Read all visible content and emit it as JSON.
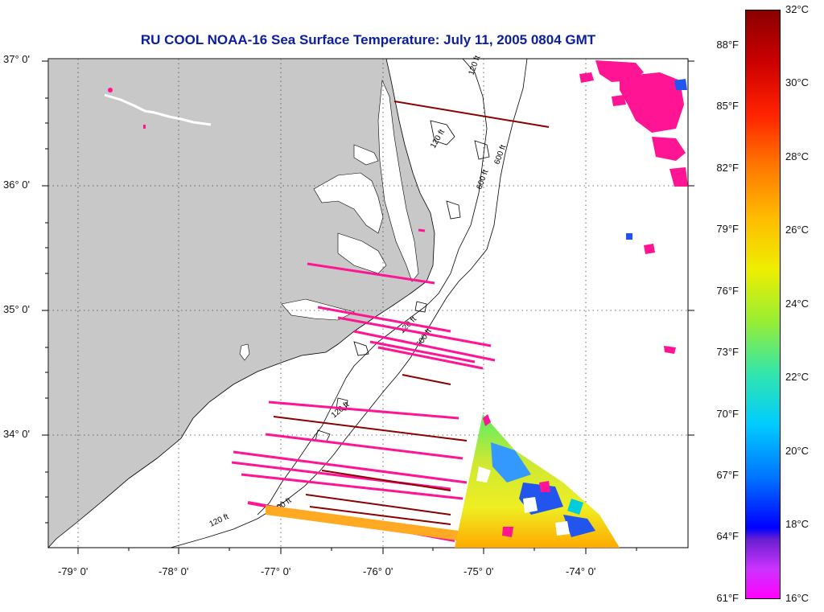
{
  "title": "RU COOL  NOAA-16  Sea Surface Temperature:  July 11, 2005 0804 GMT",
  "lat_labels": [
    "37° 0'",
    "36° 0'",
    "35° 0'",
    "34° 0'"
  ],
  "lon_labels": [
    "-79° 0'",
    "-78° 0'",
    "-77° 0'",
    "-76° 0'",
    "-75° 0'",
    "-74° 0'"
  ],
  "contour_labels": [
    "120 ft",
    "600 ft",
    "120 ft",
    "600 ft",
    "120 ft",
    "600 ft",
    "120 ft",
    "600 ft",
    "120 ft"
  ],
  "colorbar": {
    "fahrenheit_ticks": [
      "88°F",
      "85°F",
      "82°F",
      "79°F",
      "76°F",
      "73°F",
      "70°F",
      "67°F",
      "64°F",
      "61°F"
    ],
    "celsius_ticks": [
      "32°C",
      "30°C",
      "28°C",
      "26°C",
      "24°C",
      "22°C",
      "20°C",
      "18°C",
      "16°C"
    ],
    "gradient_stops": [
      "#ff00ff",
      "#cc33ff",
      "#6a1fd0",
      "#0000ff",
      "#0077ff",
      "#00ccff",
      "#33e6aa",
      "#99ee33",
      "#eeee00",
      "#ffbb00",
      "#ff7700",
      "#ff2200",
      "#cc0000",
      "#8a0000"
    ]
  },
  "colors": {
    "land": "#c8c8c8",
    "title": "#0a1e9e",
    "cold_stripe": "#ff1493",
    "warm_stripe": "#8b0000",
    "grid": "#444444"
  }
}
